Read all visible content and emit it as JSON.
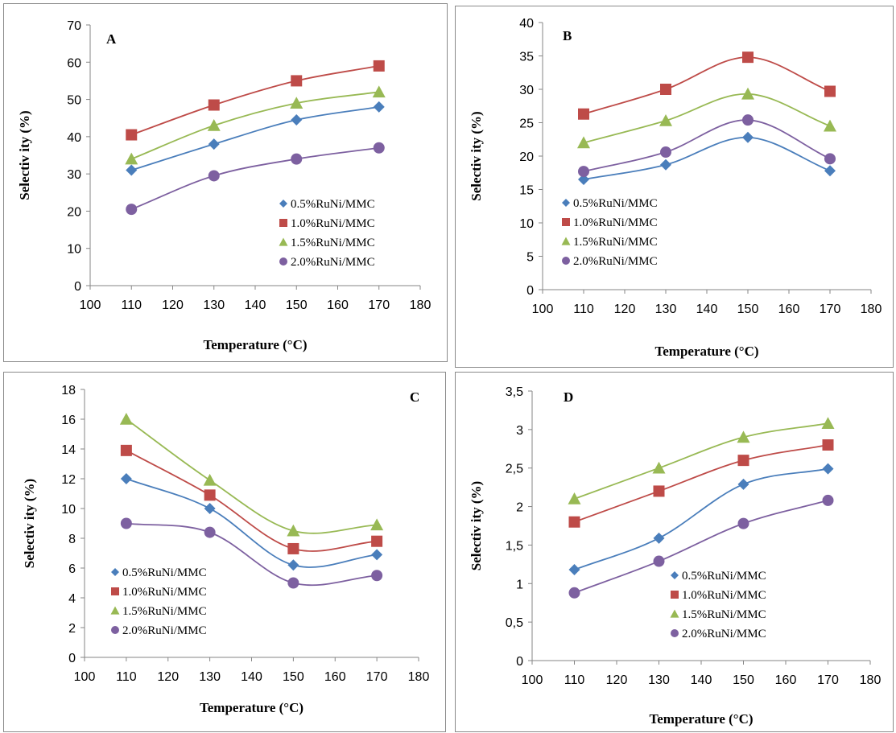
{
  "chart_data": [
    {
      "type": "scatter",
      "panel": "A",
      "xlabel": "Temperature (°C)",
      "ylabel": "Selectiv ity (%)",
      "xlim": [
        100,
        180
      ],
      "ylim": [
        0,
        70
      ],
      "xticks": [
        "100",
        "110",
        "120",
        "130",
        "140",
        "150",
        "160",
        "170",
        "180"
      ],
      "yticks": [
        "0",
        "10",
        "20",
        "30",
        "40",
        "50",
        "60",
        "70"
      ],
      "x": [
        110,
        130,
        150,
        170
      ],
      "legend_position": "bottom-right",
      "series": [
        {
          "name": "0.5%RuNi/MMC",
          "values": [
            31,
            38,
            44.5,
            48
          ],
          "marker": "diamond",
          "color": "#4a7ebb"
        },
        {
          "name": "1.0%RuNi/MMC",
          "values": [
            40.5,
            48.5,
            55,
            59
          ],
          "marker": "square",
          "color": "#be4b48"
        },
        {
          "name": "1.5%RuNi/MMC",
          "values": [
            34,
            43,
            49,
            52
          ],
          "marker": "triangle",
          "color": "#98b954"
        },
        {
          "name": "2.0%RuNi/MMC",
          "values": [
            20.5,
            29.5,
            34,
            37
          ],
          "marker": "circle",
          "color": "#7d60a0"
        }
      ]
    },
    {
      "type": "scatter",
      "panel": "B",
      "xlabel": "Temperature (°C)",
      "ylabel": "Selectiv ity (%)",
      "xlim": [
        100,
        180
      ],
      "ylim": [
        0,
        40
      ],
      "xticks": [
        "100",
        "110",
        "120",
        "130",
        "140",
        "150",
        "160",
        "170",
        "180"
      ],
      "yticks": [
        "0",
        "5",
        "10",
        "15",
        "20",
        "25",
        "30",
        "35",
        "40"
      ],
      "x": [
        110,
        130,
        150,
        170
      ],
      "legend_position": "bottom-left",
      "series": [
        {
          "name": "0.5%RuNi/MMC",
          "values": [
            16.5,
            18.7,
            22.8,
            17.8
          ],
          "marker": "diamond",
          "color": "#4a7ebb"
        },
        {
          "name": "1.0%RuNi/MMC",
          "values": [
            26.3,
            30,
            34.8,
            29.7
          ],
          "marker": "square",
          "color": "#be4b48"
        },
        {
          "name": "1.5%RuNi/MMC",
          "values": [
            22,
            25.3,
            29.3,
            24.5
          ],
          "marker": "triangle",
          "color": "#98b954"
        },
        {
          "name": "2.0%RuNi/MMC",
          "values": [
            17.7,
            20.6,
            25.4,
            19.6
          ],
          "marker": "circle",
          "color": "#7d60a0"
        }
      ]
    },
    {
      "type": "scatter",
      "panel": "C",
      "xlabel": "Temperature (°C)",
      "ylabel": "Selectiv ity (%)",
      "xlim": [
        100,
        180
      ],
      "ylim": [
        0,
        18
      ],
      "xticks": [
        "100",
        "110",
        "120",
        "130",
        "140",
        "150",
        "160",
        "170",
        "180"
      ],
      "yticks": [
        "0",
        "2",
        "4",
        "6",
        "8",
        "10",
        "12",
        "14",
        "16",
        "18"
      ],
      "x": [
        110,
        130,
        150,
        170
      ],
      "legend_position": "bottom-left",
      "series": [
        {
          "name": "0.5%RuNi/MMC",
          "values": [
            12,
            10,
            6.2,
            6.9
          ],
          "marker": "diamond",
          "color": "#4a7ebb"
        },
        {
          "name": "1.0%RuNi/MMC",
          "values": [
            13.9,
            10.9,
            7.3,
            7.8
          ],
          "marker": "square",
          "color": "#be4b48"
        },
        {
          "name": "1.5%RuNi/MMC",
          "values": [
            16,
            11.9,
            8.5,
            8.9
          ],
          "marker": "triangle",
          "color": "#98b954"
        },
        {
          "name": "2.0%RuNi/MMC",
          "values": [
            9,
            8.4,
            5,
            5.5
          ],
          "marker": "circle",
          "color": "#7d60a0"
        }
      ]
    },
    {
      "type": "scatter",
      "panel": "D",
      "xlabel": "Temperature (°C)",
      "ylabel": "Selectiv ity (%)",
      "xlim": [
        100,
        180
      ],
      "ylim": [
        0,
        3.5
      ],
      "xticks": [
        "100",
        "110",
        "120",
        "130",
        "140",
        "150",
        "160",
        "170",
        "180"
      ],
      "yticks": [
        "0",
        "0,5",
        "1",
        "1,5",
        "2",
        "2,5",
        "3",
        "3,5"
      ],
      "x": [
        110,
        130,
        150,
        170
      ],
      "legend_position": "bottom-right",
      "series": [
        {
          "name": "0.5%RuNi/MMC",
          "values": [
            1.18,
            1.59,
            2.29,
            2.49
          ],
          "marker": "diamond",
          "color": "#4a7ebb"
        },
        {
          "name": "1.0%RuNi/MMC",
          "values": [
            1.8,
            2.2,
            2.6,
            2.8
          ],
          "marker": "square",
          "color": "#be4b48"
        },
        {
          "name": "1.5%RuNi/MMC",
          "values": [
            2.1,
            2.5,
            2.9,
            3.08
          ],
          "marker": "triangle",
          "color": "#98b954"
        },
        {
          "name": "2.0%RuNi/MMC",
          "values": [
            0.88,
            1.29,
            1.78,
            2.08
          ],
          "marker": "circle",
          "color": "#7d60a0"
        }
      ]
    }
  ]
}
